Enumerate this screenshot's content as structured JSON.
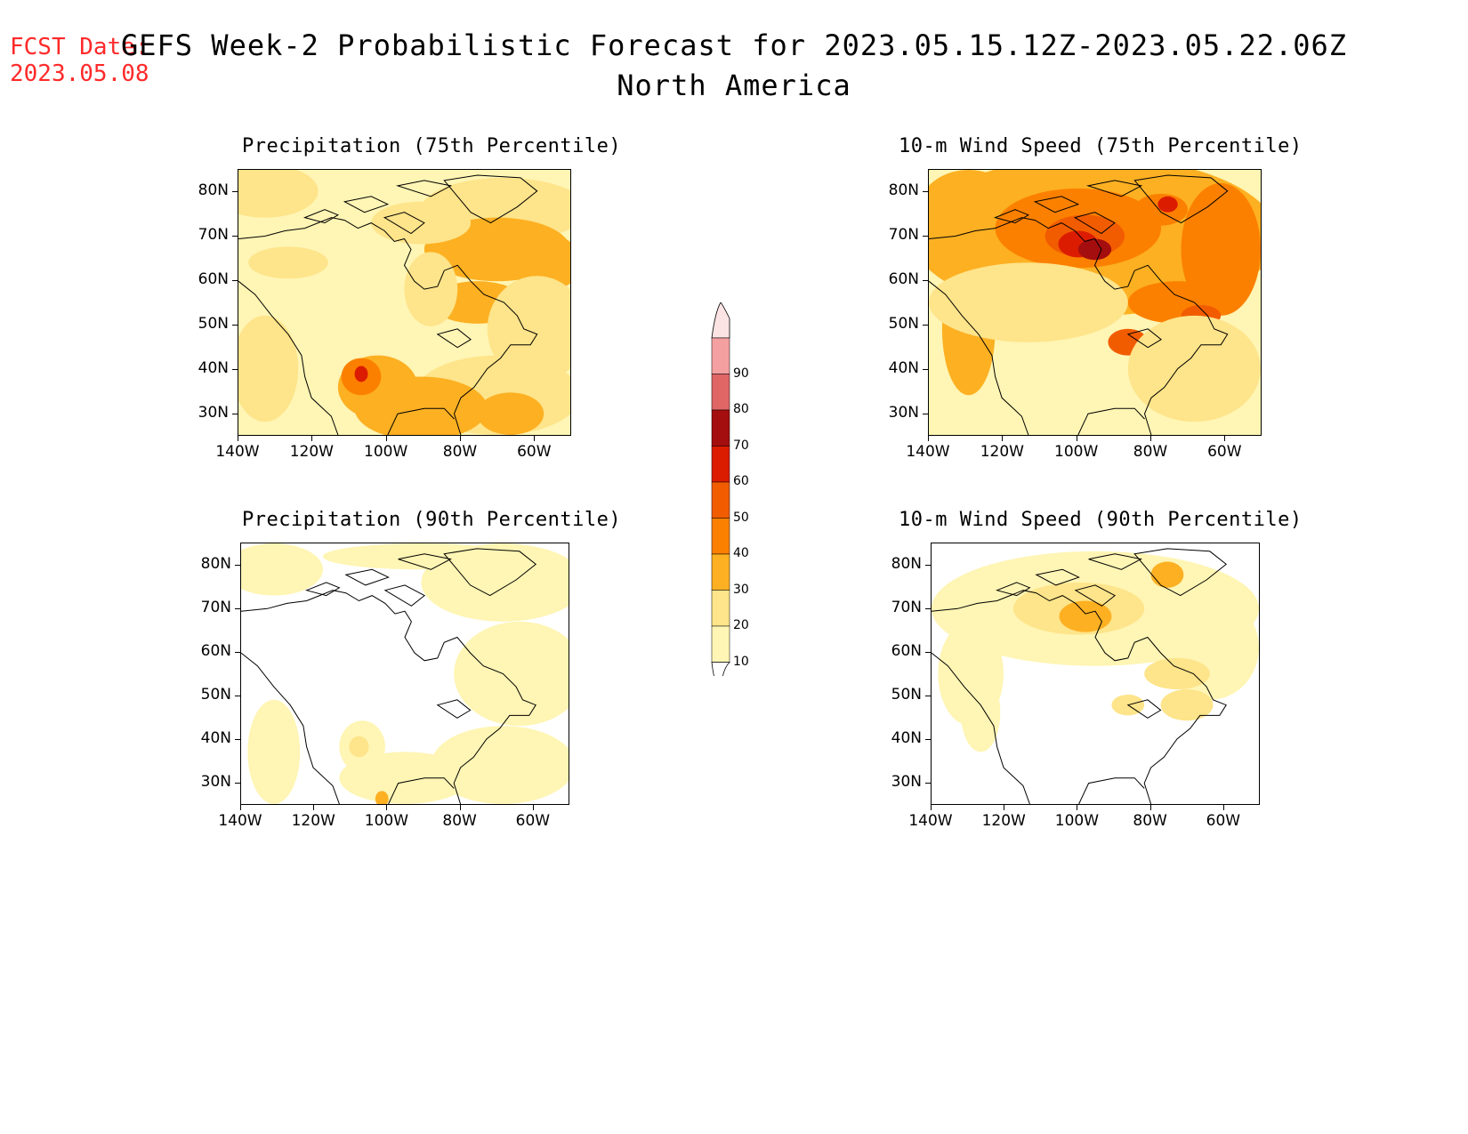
{
  "header": {
    "fcst_line1": "FCST Date:",
    "fcst_line2": "2023.05.08",
    "title": "GEFS Week-2 Probabilistic Forecast for 2023.05.15.12Z-2023.05.22.06Z",
    "subtitle": "North America"
  },
  "axes": {
    "lat_labels": [
      "80N",
      "70N",
      "60N",
      "50N",
      "40N",
      "30N"
    ],
    "lon_labels": [
      "140W",
      "120W",
      "100W",
      "80W",
      "60W"
    ]
  },
  "panels": [
    {
      "id": "precip75",
      "title": "Precipitation (75th Percentile)"
    },
    {
      "id": "wind75",
      "title": "10-m Wind Speed (75th Percentile)"
    },
    {
      "id": "precip90",
      "title": "Precipitation (90th Percentile)"
    },
    {
      "id": "wind90",
      "title": "10-m Wind Speed (90th Percentile)"
    }
  ],
  "colorbar": {
    "levels": [
      "90",
      "80",
      "70",
      "60",
      "50",
      "40",
      "30",
      "20",
      "10"
    ],
    "colors": {
      "10": "#fff5b4",
      "20": "#fee48a",
      "30": "#fdb022",
      "40": "#fc8000",
      "50": "#f25c00",
      "60": "#dc1c00",
      "70": "#a50e0e",
      "80": "#e06666",
      "90": "#f4a0a0",
      "top": "#fde4e4"
    }
  }
}
